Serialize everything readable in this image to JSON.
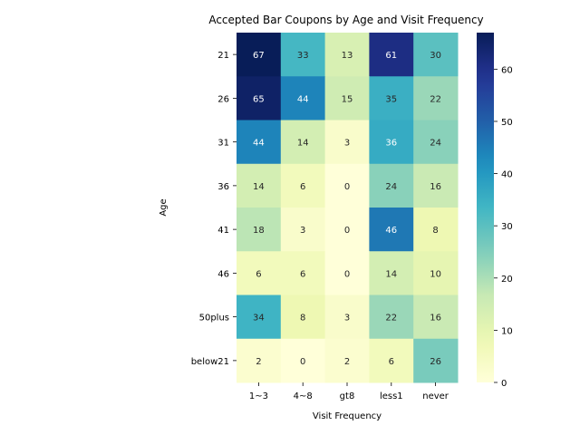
{
  "chart_data": {
    "type": "heatmap",
    "title": "Accepted Bar Coupons by Age and  Visit Frequency",
    "xlabel": "Visit Frequency",
    "ylabel": "Age",
    "x_categories": [
      "1~3",
      "4~8",
      "gt8",
      "less1",
      "never"
    ],
    "y_categories": [
      "21",
      "26",
      "31",
      "36",
      "41",
      "46",
      "50plus",
      "below21"
    ],
    "values": [
      [
        67,
        33,
        13,
        61,
        30
      ],
      [
        65,
        44,
        15,
        35,
        22
      ],
      [
        44,
        14,
        3,
        36,
        24
      ],
      [
        14,
        6,
        0,
        24,
        16
      ],
      [
        18,
        3,
        0,
        46,
        8
      ],
      [
        6,
        6,
        0,
        14,
        10
      ],
      [
        34,
        8,
        3,
        22,
        16
      ],
      [
        2,
        0,
        2,
        6,
        26
      ]
    ],
    "colorscale": "YlGnBu",
    "vmin": 0,
    "vmax": 67,
    "colorbar_ticks": [
      0,
      10,
      20,
      30,
      40,
      50,
      60
    ],
    "annotate": true
  }
}
